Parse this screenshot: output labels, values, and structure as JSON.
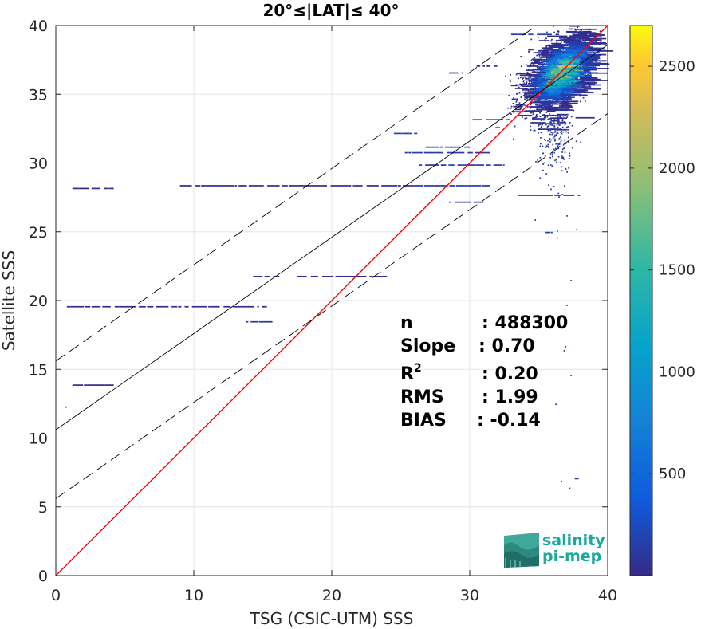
{
  "chart_data": {
    "type": "heatmap",
    "title": "20°≤|LAT|≤ 40°",
    "xlabel": "TSG (CSIC-UTM) SSS",
    "ylabel": "Satellite SSS",
    "xlim": [
      0,
      40
    ],
    "ylim": [
      0,
      40
    ],
    "xticks": [
      "0",
      "10",
      "20",
      "30",
      "40"
    ],
    "yticks": [
      "0",
      "5",
      "10",
      "15",
      "20",
      "25",
      "30",
      "35",
      "40"
    ],
    "grid": true,
    "colorbar": {
      "range": [
        0,
        2700
      ],
      "ticks": [
        "500",
        "1000",
        "1500",
        "2000",
        "2500"
      ],
      "colormap": "parula"
    },
    "lines": [
      {
        "role": "identity",
        "color": "#ff0000",
        "slope": 1.0,
        "intercept": 0.0
      },
      {
        "role": "regression",
        "color": "#000000",
        "slope": 0.7,
        "intercept": 10.6
      },
      {
        "role": "regression-upper",
        "color": "#000000",
        "dash": true,
        "slope": 0.7,
        "intercept": 15.6
      },
      {
        "role": "regression-lower",
        "color": "#000000",
        "dash": true,
        "slope": 0.7,
        "intercept": 5.6
      }
    ],
    "stats": [
      {
        "label": "n",
        "value": ": 488300"
      },
      {
        "label": "Slope",
        "value": ": 0.70"
      },
      {
        "label": "R2",
        "value": ": 0.20"
      },
      {
        "label": "RMS",
        "value": ": 1.99"
      },
      {
        "label": "BIAS",
        "value": ": -0.14"
      }
    ],
    "dense_cluster": {
      "center_x": 36.3,
      "center_y": 36.5,
      "peak_count": 2700
    },
    "segments": [
      {
        "x0": 1.2,
        "x1": 4.2,
        "y": 28.1,
        "count": 30
      },
      {
        "x0": 9.0,
        "x1": 26.0,
        "y": 28.3,
        "count": 40
      },
      {
        "x0": 26.0,
        "x1": 31.5,
        "y": 28.3,
        "count": 120
      },
      {
        "x0": 0.8,
        "x1": 15.3,
        "y": 19.5,
        "count": 30
      },
      {
        "x0": 14.3,
        "x1": 16.2,
        "y": 21.7,
        "count": 60
      },
      {
        "x0": 17.5,
        "x1": 24.0,
        "y": 21.7,
        "count": 30
      },
      {
        "x0": 13.8,
        "x1": 15.7,
        "y": 18.4,
        "count": 80
      },
      {
        "x0": 1.2,
        "x1": 4.2,
        "y": 13.8,
        "count": 40
      },
      {
        "x0": 26.3,
        "x1": 32.5,
        "y": 29.8,
        "count": 150
      },
      {
        "x0": 25.3,
        "x1": 31.5,
        "y": 30.7,
        "count": 140
      },
      {
        "x0": 24.5,
        "x1": 26.2,
        "y": 32.1,
        "count": 160
      },
      {
        "x0": 26.8,
        "x1": 30.0,
        "y": 31.1,
        "count": 120
      },
      {
        "x0": 28.5,
        "x1": 31.0,
        "y": 27.1,
        "count": 100
      },
      {
        "x0": 33.5,
        "x1": 38.0,
        "y": 27.6,
        "count": 120
      },
      {
        "x0": 30.2,
        "x1": 33.0,
        "y": 33.1,
        "count": 200
      },
      {
        "x0": 33.0,
        "x1": 36.5,
        "y": 39.3,
        "count": 150
      },
      {
        "x0": 30.5,
        "x1": 32.0,
        "y": 37.0,
        "count": 80
      },
      {
        "x0": 28.5,
        "x1": 29.5,
        "y": 36.5,
        "count": 80
      },
      {
        "x0": 35.5,
        "x1": 36.0,
        "y": 24.9,
        "count": 100
      },
      {
        "x0": 37.6,
        "x1": 37.9,
        "y": 7.0,
        "count": 80
      }
    ],
    "points": [
      [
        0.7,
        12.2
      ],
      [
        37.2,
        6.3
      ],
      [
        36.6,
        6.8
      ],
      [
        37.3,
        21.4
      ],
      [
        36.3,
        24.5
      ],
      [
        37.0,
        26.1
      ],
      [
        37.7,
        25.1
      ],
      [
        34.7,
        25.8
      ],
      [
        36.3,
        25.0
      ],
      [
        36.9,
        16.6
      ],
      [
        37.0,
        19.6
      ],
      [
        36.2,
        12.4
      ],
      [
        36.8,
        16.3
      ],
      [
        37.3,
        14.5
      ]
    ]
  },
  "logo": {
    "line1": "salinity",
    "line2": "pi-mep"
  }
}
